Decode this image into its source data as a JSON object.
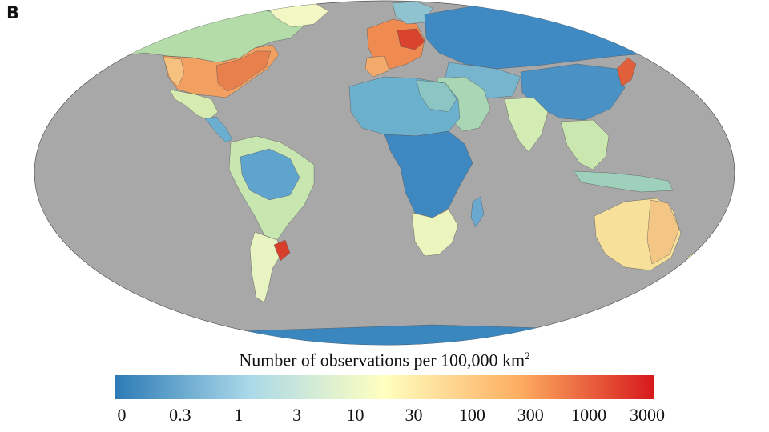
{
  "panel_label": "B",
  "map": {
    "projection": "robinson",
    "ocean_color": "#a8a8a8",
    "border_color": "#333333"
  },
  "legend": {
    "title_main": "Number of observations per 100,000 km",
    "title_sup": "2",
    "scale": "log",
    "colors": [
      "#2c7bb6",
      "#abd9e9",
      "#ffffbf",
      "#fdae61",
      "#d7191c"
    ],
    "ticks": [
      "0",
      "0.3",
      "1",
      "3",
      "10",
      "30",
      "100",
      "300",
      "1000",
      "3000"
    ]
  },
  "chart_data": {
    "type": "choropleth",
    "title": "Number of observations per 100,000 km²",
    "scale": "log",
    "legend_ticks": [
      "0",
      "0.3",
      "1",
      "3",
      "10",
      "30",
      "100",
      "300",
      "1000",
      "3000"
    ],
    "regions": [
      {
        "name": "Western Europe",
        "level": "300-3000"
      },
      {
        "name": "Eastern United States",
        "level": "100-300"
      },
      {
        "name": "Japan",
        "level": "300-1000"
      },
      {
        "name": "Southeastern Brazil",
        "level": "300-3000"
      },
      {
        "name": "Australia",
        "level": "10-100"
      },
      {
        "name": "Russia",
        "level": "0-1"
      },
      {
        "name": "Central Africa",
        "level": "0-1"
      },
      {
        "name": "South Africa",
        "level": "10-30"
      },
      {
        "name": "Canada",
        "level": "3-30"
      },
      {
        "name": "Antarctica",
        "level": "0"
      }
    ]
  }
}
